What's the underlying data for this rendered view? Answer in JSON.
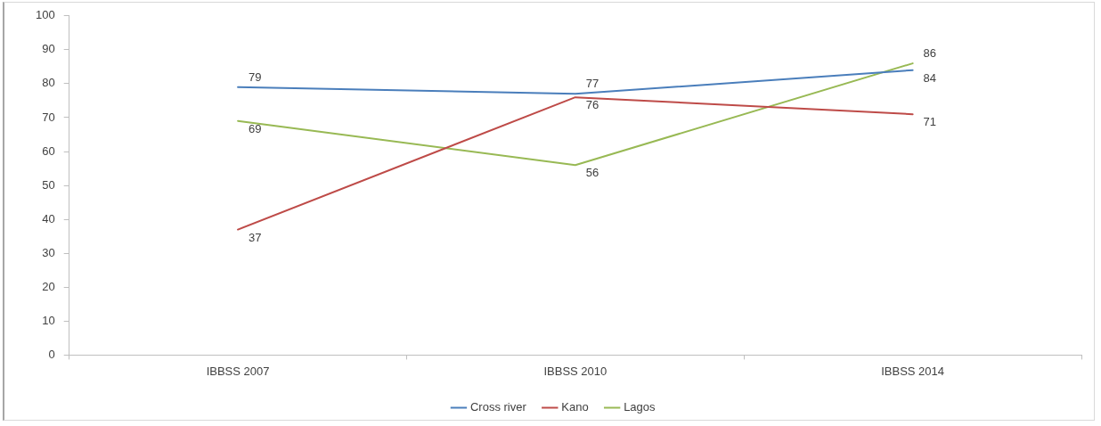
{
  "chart_data": {
    "type": "line",
    "categories": [
      "IBBSS 2007",
      "IBBSS 2010",
      "IBBSS 2014"
    ],
    "series": [
      {
        "name": "Cross river",
        "color": "#4a7ebb",
        "values": [
          79,
          77,
          84
        ]
      },
      {
        "name": "Kano",
        "color": "#be4b48",
        "values": [
          37,
          76,
          71
        ]
      },
      {
        "name": "Lagos",
        "color": "#98b954",
        "values": [
          69,
          56,
          86
        ]
      }
    ],
    "ylim": [
      0,
      100
    ],
    "yticks": [
      0,
      10,
      20,
      30,
      40,
      50,
      60,
      70,
      80,
      90,
      100
    ],
    "data_labels": true,
    "legend": "bottom",
    "marker": "none",
    "line_style": "solid"
  }
}
